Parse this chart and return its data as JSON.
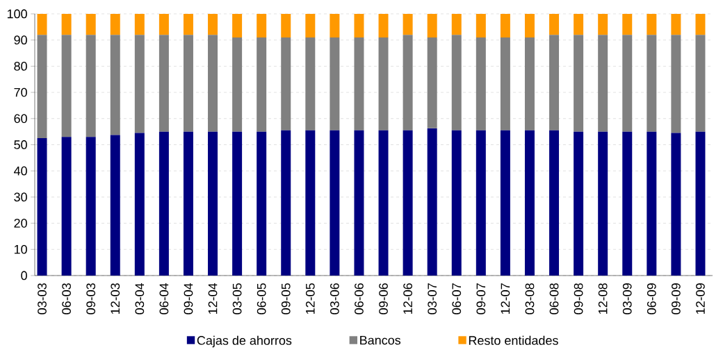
{
  "chart_data": {
    "type": "bar",
    "stacked": true,
    "categories": [
      "03-03",
      "06-03",
      "09-03",
      "12-03",
      "03-04",
      "06-04",
      "09-04",
      "12-04",
      "03-05",
      "06-05",
      "09-05",
      "12-05",
      "03-06",
      "06-06",
      "09-06",
      "12-06",
      "03-07",
      "06-07",
      "09-07",
      "12-07",
      "03-08",
      "06-08",
      "09-08",
      "12-08",
      "03-09",
      "06-09",
      "09-09",
      "12-09"
    ],
    "series": [
      {
        "name": "Cajas de ahorros",
        "color": "#000080",
        "values": [
          52.5,
          53,
          53,
          53.7,
          54.5,
          55,
          55,
          55,
          55,
          55,
          55.5,
          55.5,
          55.5,
          55.5,
          55.5,
          55.5,
          56.3,
          55.5,
          55.5,
          55.5,
          55.5,
          55.5,
          55,
          55,
          55,
          55,
          54.5,
          55
        ]
      },
      {
        "name": "Bancos",
        "color": "#808080",
        "values": [
          39.5,
          39,
          39,
          38.3,
          37.5,
          37,
          37,
          37,
          36,
          36,
          35.5,
          35.5,
          35.5,
          35.5,
          35.5,
          36.5,
          34.7,
          36.5,
          35.5,
          35.5,
          35.5,
          36.5,
          37,
          37,
          37,
          37,
          37.5,
          37
        ]
      },
      {
        "name": "Resto entidades",
        "color": "#ff9900",
        "values": [
          8,
          8,
          8,
          8,
          8,
          8,
          8,
          8,
          9,
          9,
          9,
          9,
          9,
          9,
          9,
          8,
          9,
          8,
          9,
          9,
          9,
          8,
          8,
          8,
          8,
          8,
          8,
          8
        ]
      }
    ],
    "ylim": [
      0,
      100
    ],
    "yticks": [
      0,
      10,
      20,
      30,
      40,
      50,
      60,
      70,
      80,
      90,
      100
    ],
    "grid": "y",
    "legend": "bottom"
  }
}
